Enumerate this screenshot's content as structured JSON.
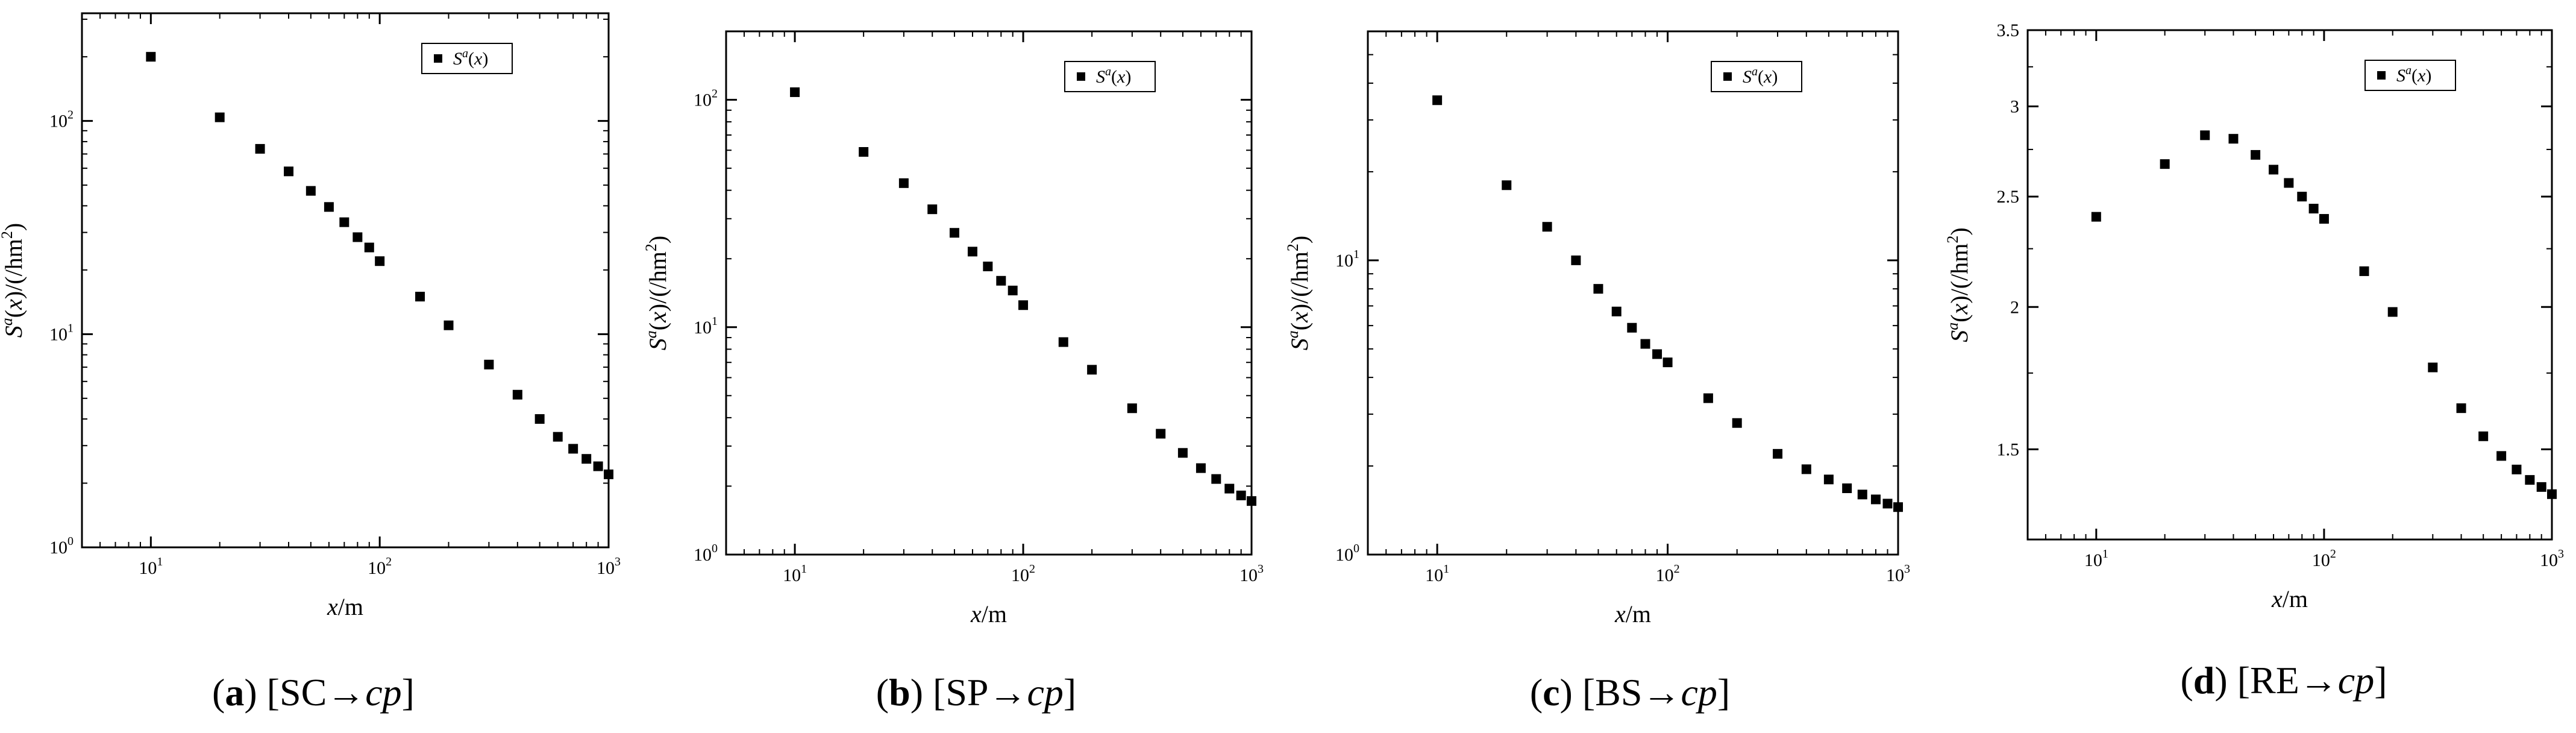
{
  "figure": {
    "x_axis_label": {
      "var": "x",
      "unit": "/m"
    },
    "y_axis_label": {
      "base": "S",
      "sup": "a",
      "arg": "(x)/(/hm",
      "sup2": "2",
      "close": ")"
    },
    "legend_label": {
      "base": "S",
      "sup": "a",
      "arg": "(x)"
    }
  },
  "chart_data": [
    {
      "type": "scatter",
      "caption": {
        "letter": "a",
        "text": "[SC→",
        "italic": "cp",
        "close": "]"
      },
      "x": [
        10,
        20,
        30,
        40,
        50,
        60,
        70,
        80,
        90,
        100,
        150,
        200,
        300,
        400,
        500,
        600,
        700,
        800,
        900,
        1000
      ],
      "y": [
        200,
        104,
        74,
        58,
        47,
        39.5,
        33.5,
        28.5,
        25.5,
        22,
        15,
        11,
        7.2,
        5.2,
        4.0,
        3.3,
        2.9,
        2.6,
        2.4,
        2.2
      ],
      "xscale": "log",
      "yscale": "log",
      "xlim": [
        5,
        1000
      ],
      "ylim": [
        1,
        320
      ],
      "xticks": [
        {
          "base": "10",
          "exp": "1",
          "value": 10
        },
        {
          "base": "10",
          "exp": "2",
          "value": 100
        },
        {
          "base": "10",
          "exp": "3",
          "value": 1000
        }
      ],
      "yticks": [
        {
          "base": "10",
          "exp": "0",
          "value": 1
        },
        {
          "base": "10",
          "exp": "1",
          "value": 10
        },
        {
          "base": "10",
          "exp": "2",
          "value": 100
        }
      ],
      "legend": "top-right"
    },
    {
      "type": "scatter",
      "caption": {
        "letter": "b",
        "text": "[SP→",
        "italic": "cp",
        "close": "]"
      },
      "x": [
        10,
        20,
        30,
        40,
        50,
        60,
        70,
        80,
        90,
        100,
        150,
        200,
        300,
        400,
        500,
        600,
        700,
        800,
        900,
        1000
      ],
      "y": [
        108,
        59,
        43,
        33,
        26,
        21.5,
        18.5,
        16,
        14.5,
        12.5,
        8.6,
        6.5,
        4.4,
        3.4,
        2.8,
        2.4,
        2.15,
        1.95,
        1.82,
        1.72
      ],
      "xscale": "log",
      "yscale": "log",
      "xlim": [
        5,
        1000
      ],
      "ylim": [
        1,
        200
      ],
      "xticks": [
        {
          "base": "10",
          "exp": "1",
          "value": 10
        },
        {
          "base": "10",
          "exp": "2",
          "value": 100
        },
        {
          "base": "10",
          "exp": "3",
          "value": 1000
        }
      ],
      "yticks": [
        {
          "base": "10",
          "exp": "0",
          "value": 1
        },
        {
          "base": "10",
          "exp": "1",
          "value": 10
        },
        {
          "base": "10",
          "exp": "2",
          "value": 100
        }
      ],
      "legend": "top-right"
    },
    {
      "type": "scatter",
      "caption": {
        "letter": "c",
        "text": "[BS→",
        "italic": "cp",
        "close": "]"
      },
      "x": [
        10,
        20,
        30,
        40,
        50,
        60,
        70,
        80,
        90,
        100,
        150,
        200,
        300,
        400,
        500,
        600,
        700,
        800,
        900,
        1000
      ],
      "y": [
        35,
        18,
        13,
        10,
        8,
        6.7,
        5.9,
        5.2,
        4.8,
        4.5,
        3.4,
        2.8,
        2.2,
        1.95,
        1.8,
        1.68,
        1.6,
        1.54,
        1.49,
        1.45
      ],
      "xscale": "log",
      "yscale": "log",
      "xlim": [
        5,
        1000
      ],
      "ylim": [
        1,
        60
      ],
      "xticks": [
        {
          "base": "10",
          "exp": "1",
          "value": 10
        },
        {
          "base": "10",
          "exp": "2",
          "value": 100
        },
        {
          "base": "10",
          "exp": "3",
          "value": 1000
        }
      ],
      "yticks": [
        {
          "base": "10",
          "exp": "0",
          "value": 1
        },
        {
          "base": "10",
          "exp": "1",
          "value": 10
        }
      ],
      "legend": "top-right"
    },
    {
      "type": "scatter",
      "caption": {
        "letter": "d",
        "text": "[RE→",
        "italic": "cp",
        "close": "]"
      },
      "x": [
        10,
        20,
        30,
        40,
        50,
        60,
        70,
        80,
        90,
        100,
        150,
        200,
        300,
        400,
        500,
        600,
        700,
        800,
        900,
        1000
      ],
      "y": [
        2.4,
        2.67,
        2.83,
        2.81,
        2.72,
        2.64,
        2.57,
        2.5,
        2.44,
        2.39,
        2.15,
        1.98,
        1.77,
        1.63,
        1.54,
        1.48,
        1.44,
        1.41,
        1.39,
        1.37
      ],
      "xscale": "log",
      "yscale": "log",
      "xlim": [
        5,
        1000
      ],
      "ylim": [
        1.25,
        3.5
      ],
      "xticks": [
        {
          "base": "10",
          "exp": "1",
          "value": 10
        },
        {
          "base": "10",
          "exp": "2",
          "value": 100
        },
        {
          "base": "10",
          "exp": "3",
          "value": 1000
        }
      ],
      "yticks": [
        {
          "text": "1.5",
          "value": 1.5
        },
        {
          "text": "2",
          "value": 2
        },
        {
          "text": "2.5",
          "value": 2.5
        },
        {
          "text": "3",
          "value": 3
        },
        {
          "text": "3.5",
          "value": 3.5
        }
      ],
      "legend": "top-right"
    }
  ]
}
